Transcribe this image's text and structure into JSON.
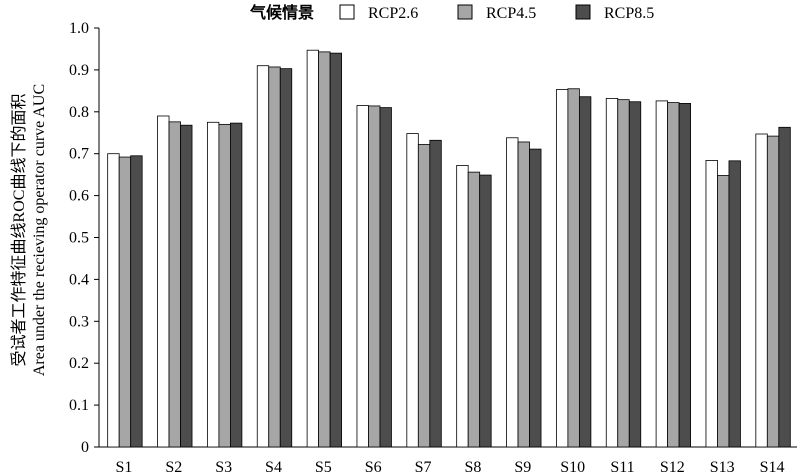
{
  "chart_data": {
    "type": "bar",
    "title": "",
    "xlabel": "",
    "ylabel_lines": [
      "受试者工作特征曲线ROC曲线下的面积",
      "Area under the recieving operator  curve AUC"
    ],
    "ylim": [
      0,
      1.0
    ],
    "yticks": [
      "0",
      "0.1",
      "0.2",
      "0.3",
      "0.4",
      "0.5",
      "0.6",
      "0.7",
      "0.8",
      "0.9",
      "1.0"
    ],
    "categories": [
      "S1",
      "S2",
      "S3",
      "S4",
      "S5",
      "S6",
      "S7",
      "S8",
      "S9",
      "S10",
      "S11",
      "S12",
      "S13",
      "S14"
    ],
    "legend_title": "气候情景",
    "legend_placement": "top",
    "grid": false,
    "series": [
      {
        "name": "RCP2.6",
        "color": "#ffffff",
        "values": [
          0.7,
          0.79,
          0.775,
          0.91,
          0.947,
          0.815,
          0.748,
          0.672,
          0.738,
          0.853,
          0.832,
          0.826,
          0.684,
          0.747
        ]
      },
      {
        "name": "RCP4.5",
        "color": "#a6a6a6",
        "values": [
          0.692,
          0.776,
          0.77,
          0.907,
          0.943,
          0.814,
          0.722,
          0.656,
          0.728,
          0.855,
          0.829,
          0.822,
          0.648,
          0.742
        ]
      },
      {
        "name": "RCP8.5",
        "color": "#4d4d4d",
        "values": [
          0.695,
          0.768,
          0.773,
          0.903,
          0.94,
          0.81,
          0.732,
          0.649,
          0.711,
          0.836,
          0.824,
          0.82,
          0.683,
          0.763
        ]
      }
    ]
  }
}
